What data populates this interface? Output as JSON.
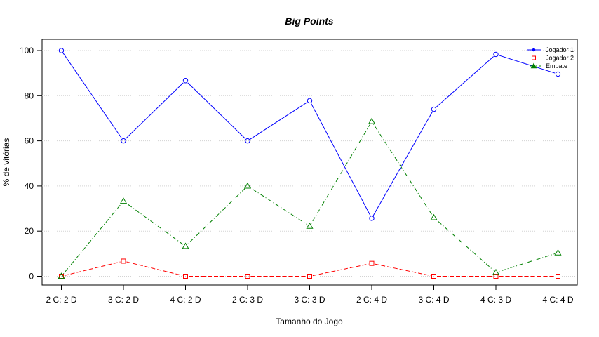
{
  "chart_data": {
    "type": "line",
    "title": "Big Points",
    "xlabel": "Tamanho do Jogo",
    "ylabel": "% de vitórias",
    "categories": [
      "2 C: 2 D",
      "3 C: 2 D",
      "4 C: 2 D",
      "2 C: 3 D",
      "3 C: 3 D",
      "2 C: 4 D",
      "3 C: 4 D",
      "4 C: 3 D",
      "4 C: 4 D"
    ],
    "ylim": [
      0,
      100
    ],
    "yticks": [
      0,
      20,
      40,
      60,
      80,
      100
    ],
    "grid": "horizontal-dotted",
    "legend_position": "top-right",
    "series": [
      {
        "name": "Jogador 1",
        "color": "#0000ff",
        "marker": "circle",
        "line": "solid",
        "values": [
          100,
          60,
          86.7,
          60,
          77.8,
          25.7,
          74,
          98.3,
          89.6
        ]
      },
      {
        "name": "Jogador 2",
        "color": "#ff0000",
        "marker": "square",
        "line": "dashed",
        "values": [
          0,
          6.7,
          0,
          0,
          0,
          5.7,
          0,
          0,
          0
        ]
      },
      {
        "name": "Empate",
        "color": "#008000",
        "marker": "triangle",
        "line": "dotdash",
        "values": [
          0,
          33.3,
          13.3,
          40,
          22.2,
          68.6,
          26,
          1.7,
          10.4
        ]
      }
    ]
  }
}
